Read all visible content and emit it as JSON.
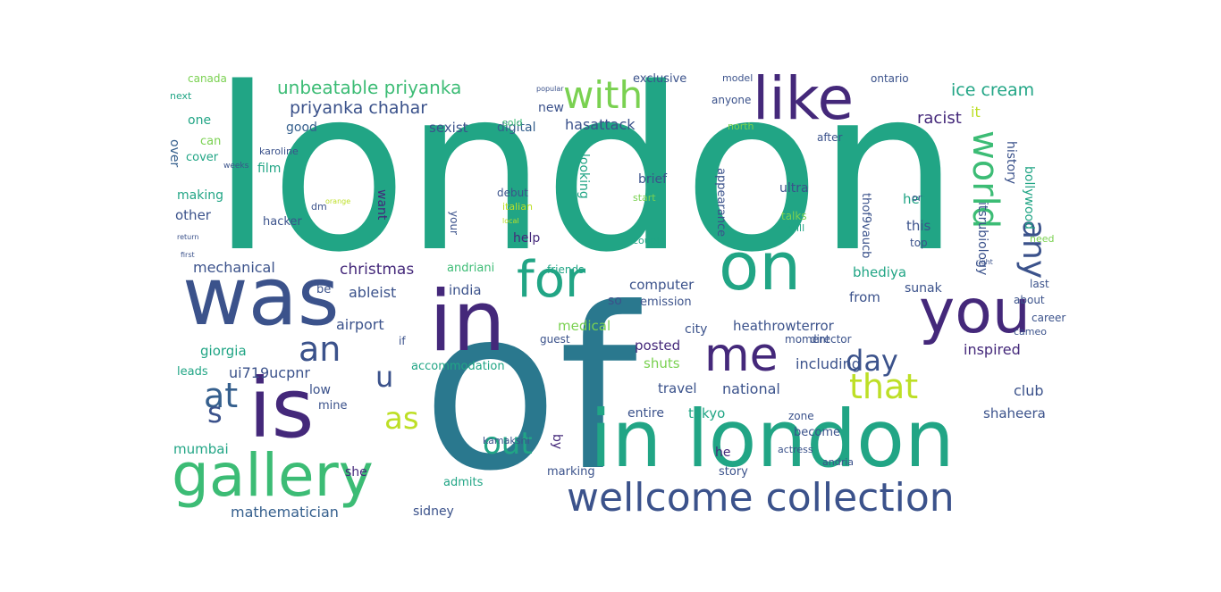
{
  "palette": {
    "teal": "#21a585",
    "teal_dark": "#2a788e",
    "purple": "#44287a",
    "navy": "#3b528b",
    "blue": "#355f8d",
    "green": "#3cbc75",
    "green_light": "#7ad151",
    "yellow": "#bddf26",
    "cyan": "#1fa187"
  },
  "words": {
    "london": "london",
    "of": "of",
    "in_london": "in london",
    "in": "in",
    "was": "was",
    "is": "is",
    "gallery": "gallery",
    "wellcome_collection": "wellcome collection",
    "on": "on",
    "you": "you",
    "like": "like",
    "for": "for",
    "me": "me",
    "with": "with",
    "world": "world",
    "that": "that",
    "any": "any",
    "day": "day",
    "at": "at",
    "an": "an",
    "s": "s",
    "as": "as",
    "out": "out",
    "u": "u",
    "unbeatable_priyanka": "unbeatable priyanka",
    "priyanka_chahar": "priyanka chahar",
    "ice_cream": "ice cream",
    "racist": "racist",
    "it": "it",
    "sexist": "sexist",
    "digital": "digital",
    "hasattack": "hasattack",
    "new": "new",
    "good": "good",
    "one": "one",
    "film": "film",
    "other": "other",
    "making": "making",
    "cover": "cover",
    "can": "can",
    "over": "over",
    "mechanical": "mechanical",
    "christmas": "christmas",
    "andriani": "andriani",
    "ableist": "ableist",
    "india": "india",
    "computer": "computer",
    "bhediya": "bhediya",
    "sunak": "sunak",
    "from": "from",
    "heathrowterror": "heathrowterror",
    "city": "city",
    "posted": "posted",
    "inspired": "inspired",
    "including": "including",
    "travel": "travel",
    "national": "national",
    "club": "club",
    "tokyo": "tokyo",
    "shaheera": "shaheera",
    "mumbai": "mumbai",
    "mathematician": "mathematician",
    "sidney": "sidney",
    "giorgia": "giorgia",
    "ui719ucpnr": "ui719ucpnr",
    "airport": "airport",
    "medical": "medical",
    "shuts": "shuts",
    "accommodation": "accommodation",
    "leads": "leads",
    "low": "low",
    "mine": "mine",
    "she": "she",
    "he": "he",
    "by": "by",
    "story": "story",
    "admits": "admits",
    "entire": "entire",
    "zone": "zone",
    "become": "become",
    "want": "want",
    "looking": "looking",
    "help": "help",
    "debut": "debut",
    "brief": "brief",
    "ultra": "ultra",
    "talks": "talks",
    "her": "her",
    "this": "this",
    "history": "history",
    "itsrubiology": "itsrubiology",
    "bollywood": "bollywood",
    "thof9vaucb": "thof9vaucb",
    "top": "top",
    "need": "need",
    "last": "last",
    "about": "about",
    "career": "career",
    "exclusive": "exclusive",
    "model": "model",
    "anyone": "anyone",
    "ontario": "ontario",
    "canada": "canada",
    "after": "after",
    "be": "be",
    "so": "so",
    "emission": "emission",
    "appearance": "appearance",
    "director": "director",
    "moment": "moment",
    "cameo": "cameo",
    "guest": "guest",
    "if": "if",
    "your": "your",
    "friends": "friends",
    "karoline": "karoline",
    "weeks": "weeks",
    "hacker": "hacker",
    "dm": "dm",
    "start": "start",
    "couple": "couple",
    "italian": "italian",
    "next": "next",
    "sold": "sold",
    "north": "north",
    "or": "or",
    "will": "will",
    "actress": "actress",
    "andria": "andria",
    "kamakshi": "kamakshi",
    "marking": "marking",
    "popular": "popular",
    "right": "right",
    "local": "local",
    "orange": "orange",
    "first": "first",
    "return": "return"
  }
}
